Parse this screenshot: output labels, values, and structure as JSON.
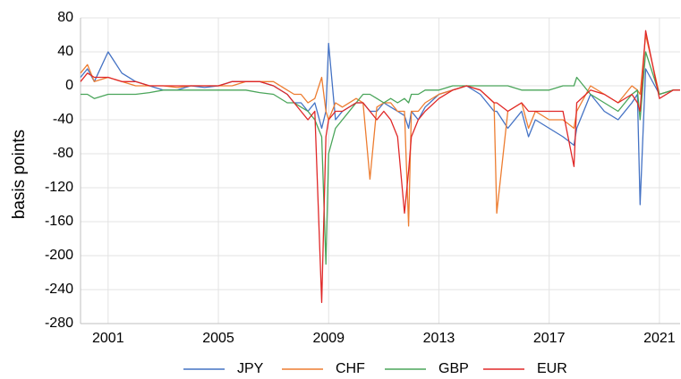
{
  "chart_data": {
    "type": "line",
    "ylabel": "basis points",
    "x": [
      2000,
      2000.25,
      2000.5,
      2001,
      2001.5,
      2002,
      2002.5,
      2003,
      2003.5,
      2004,
      2004.5,
      2005,
      2005.5,
      2006,
      2006.5,
      2007,
      2007.5,
      2007.75,
      2008,
      2008.25,
      2008.5,
      2008.75,
      2008.9,
      2009,
      2009.25,
      2009.5,
      2010,
      2010.25,
      2010.5,
      2010.75,
      2011,
      2011.25,
      2011.5,
      2011.75,
      2011.9,
      2012,
      2012.25,
      2012.5,
      2013,
      2013.5,
      2014,
      2014.5,
      2015,
      2015.1,
      2015.5,
      2016,
      2016.25,
      2016.5,
      2017,
      2017.5,
      2017.9,
      2018,
      2018.5,
      2019,
      2019.5,
      2020,
      2020.2,
      2020.3,
      2020.5,
      2021,
      2021.5,
      2021.75
    ],
    "series": [
      {
        "name": "JPY",
        "color": "#4472c4",
        "values": [
          10,
          20,
          5,
          40,
          15,
          5,
          0,
          -5,
          -5,
          0,
          -2,
          0,
          5,
          5,
          5,
          0,
          -10,
          -20,
          -20,
          -30,
          -20,
          -50,
          -30,
          50,
          -40,
          -30,
          -20,
          -20,
          -30,
          -30,
          -20,
          -25,
          -30,
          -35,
          -50,
          -30,
          -40,
          -25,
          -10,
          -5,
          0,
          -10,
          -30,
          -30,
          -50,
          -30,
          -60,
          -40,
          -50,
          -60,
          -70,
          -50,
          -10,
          -30,
          -40,
          -20,
          -10,
          -140,
          20,
          -10,
          -5,
          -5
        ]
      },
      {
        "name": "CHF",
        "color": "#ed7d31",
        "values": [
          15,
          25,
          5,
          10,
          5,
          0,
          0,
          0,
          -2,
          0,
          0,
          0,
          0,
          5,
          5,
          5,
          -5,
          -10,
          -10,
          -20,
          -15,
          10,
          -30,
          -40,
          -20,
          -25,
          -15,
          -20,
          -110,
          -25,
          -20,
          -20,
          -30,
          -30,
          -165,
          -30,
          -30,
          -20,
          -10,
          -5,
          0,
          -5,
          -20,
          -150,
          -30,
          -20,
          -50,
          -30,
          -40,
          -40,
          -50,
          -30,
          0,
          -10,
          -20,
          0,
          -5,
          -10,
          60,
          -10,
          -5,
          -5
        ]
      },
      {
        "name": "GBP",
        "color": "#4aa55a",
        "values": [
          -10,
          -10,
          -15,
          -10,
          -10,
          -10,
          -8,
          -5,
          -5,
          -5,
          -5,
          -5,
          -5,
          -5,
          -8,
          -10,
          -20,
          -20,
          -25,
          -30,
          -40,
          -60,
          -210,
          -80,
          -50,
          -40,
          -20,
          -10,
          -10,
          -15,
          -20,
          -15,
          -20,
          -15,
          -20,
          -10,
          -10,
          -5,
          -5,
          0,
          0,
          0,
          0,
          0,
          0,
          -5,
          -5,
          -5,
          -5,
          0,
          0,
          10,
          -10,
          -20,
          -30,
          -10,
          -5,
          -40,
          40,
          -10,
          -5,
          -5
        ]
      },
      {
        "name": "EUR",
        "color": "#e02828",
        "values": [
          5,
          15,
          10,
          10,
          5,
          5,
          0,
          0,
          0,
          0,
          0,
          0,
          5,
          5,
          5,
          0,
          -10,
          -20,
          -30,
          -40,
          -30,
          -255,
          -60,
          -40,
          -30,
          -30,
          -20,
          -20,
          -30,
          -40,
          -30,
          -40,
          -60,
          -150,
          -100,
          -60,
          -40,
          -30,
          -15,
          -5,
          0,
          -5,
          -20,
          -20,
          -30,
          -20,
          -30,
          -30,
          -30,
          -30,
          -95,
          -20,
          -5,
          -10,
          -20,
          -10,
          -20,
          -30,
          65,
          -15,
          -5,
          -5
        ]
      }
    ],
    "xlim": [
      2000,
      2021.75
    ],
    "xticks": [
      2001,
      2005,
      2009,
      2013,
      2017,
      2021
    ],
    "ylim": [
      -280,
      80
    ],
    "yticks": [
      80,
      40,
      0,
      -40,
      -80,
      -120,
      -160,
      -200,
      -240,
      -280
    ],
    "grid": true,
    "legend": "bottom"
  }
}
